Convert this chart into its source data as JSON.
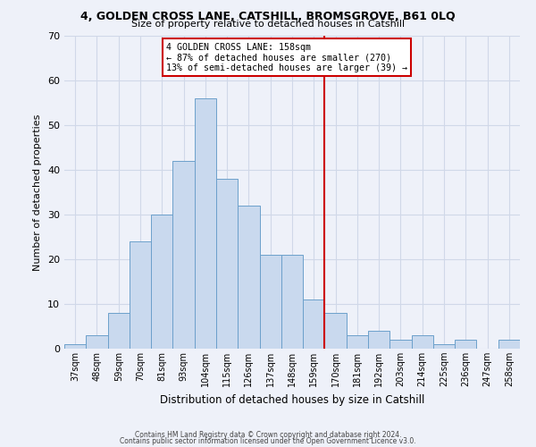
{
  "title1": "4, GOLDEN CROSS LANE, CATSHILL, BROMSGROVE, B61 0LQ",
  "title2": "Size of property relative to detached houses in Catshill",
  "xlabel": "Distribution of detached houses by size in Catshill",
  "ylabel": "Number of detached properties",
  "bar_labels": [
    "37sqm",
    "48sqm",
    "59sqm",
    "70sqm",
    "81sqm",
    "93sqm",
    "104sqm",
    "115sqm",
    "126sqm",
    "137sqm",
    "148sqm",
    "159sqm",
    "170sqm",
    "181sqm",
    "192sqm",
    "203sqm",
    "214sqm",
    "225sqm",
    "236sqm",
    "247sqm",
    "258sqm"
  ],
  "bar_heights": [
    1,
    3,
    8,
    24,
    30,
    42,
    56,
    38,
    32,
    21,
    21,
    11,
    8,
    3,
    4,
    2,
    3,
    1,
    2,
    0,
    2
  ],
  "bar_color": "#c9d9ee",
  "bar_edgecolor": "#6ca0cb",
  "vline_x_idx": 11,
  "vline_color": "#cc0000",
  "annotation_title": "4 GOLDEN CROSS LANE: 158sqm",
  "annotation_line1": "← 87% of detached houses are smaller (270)",
  "annotation_line2": "13% of semi-detached houses are larger (39) →",
  "annotation_box_edgecolor": "#cc0000",
  "ylim": [
    0,
    70
  ],
  "yticks": [
    0,
    10,
    20,
    30,
    40,
    50,
    60,
    70
  ],
  "footnote1": "Contains HM Land Registry data © Crown copyright and database right 2024.",
  "footnote2": "Contains public sector information licensed under the Open Government Licence v3.0.",
  "background_color": "#eef1f9",
  "grid_color": "#d0d8e8"
}
